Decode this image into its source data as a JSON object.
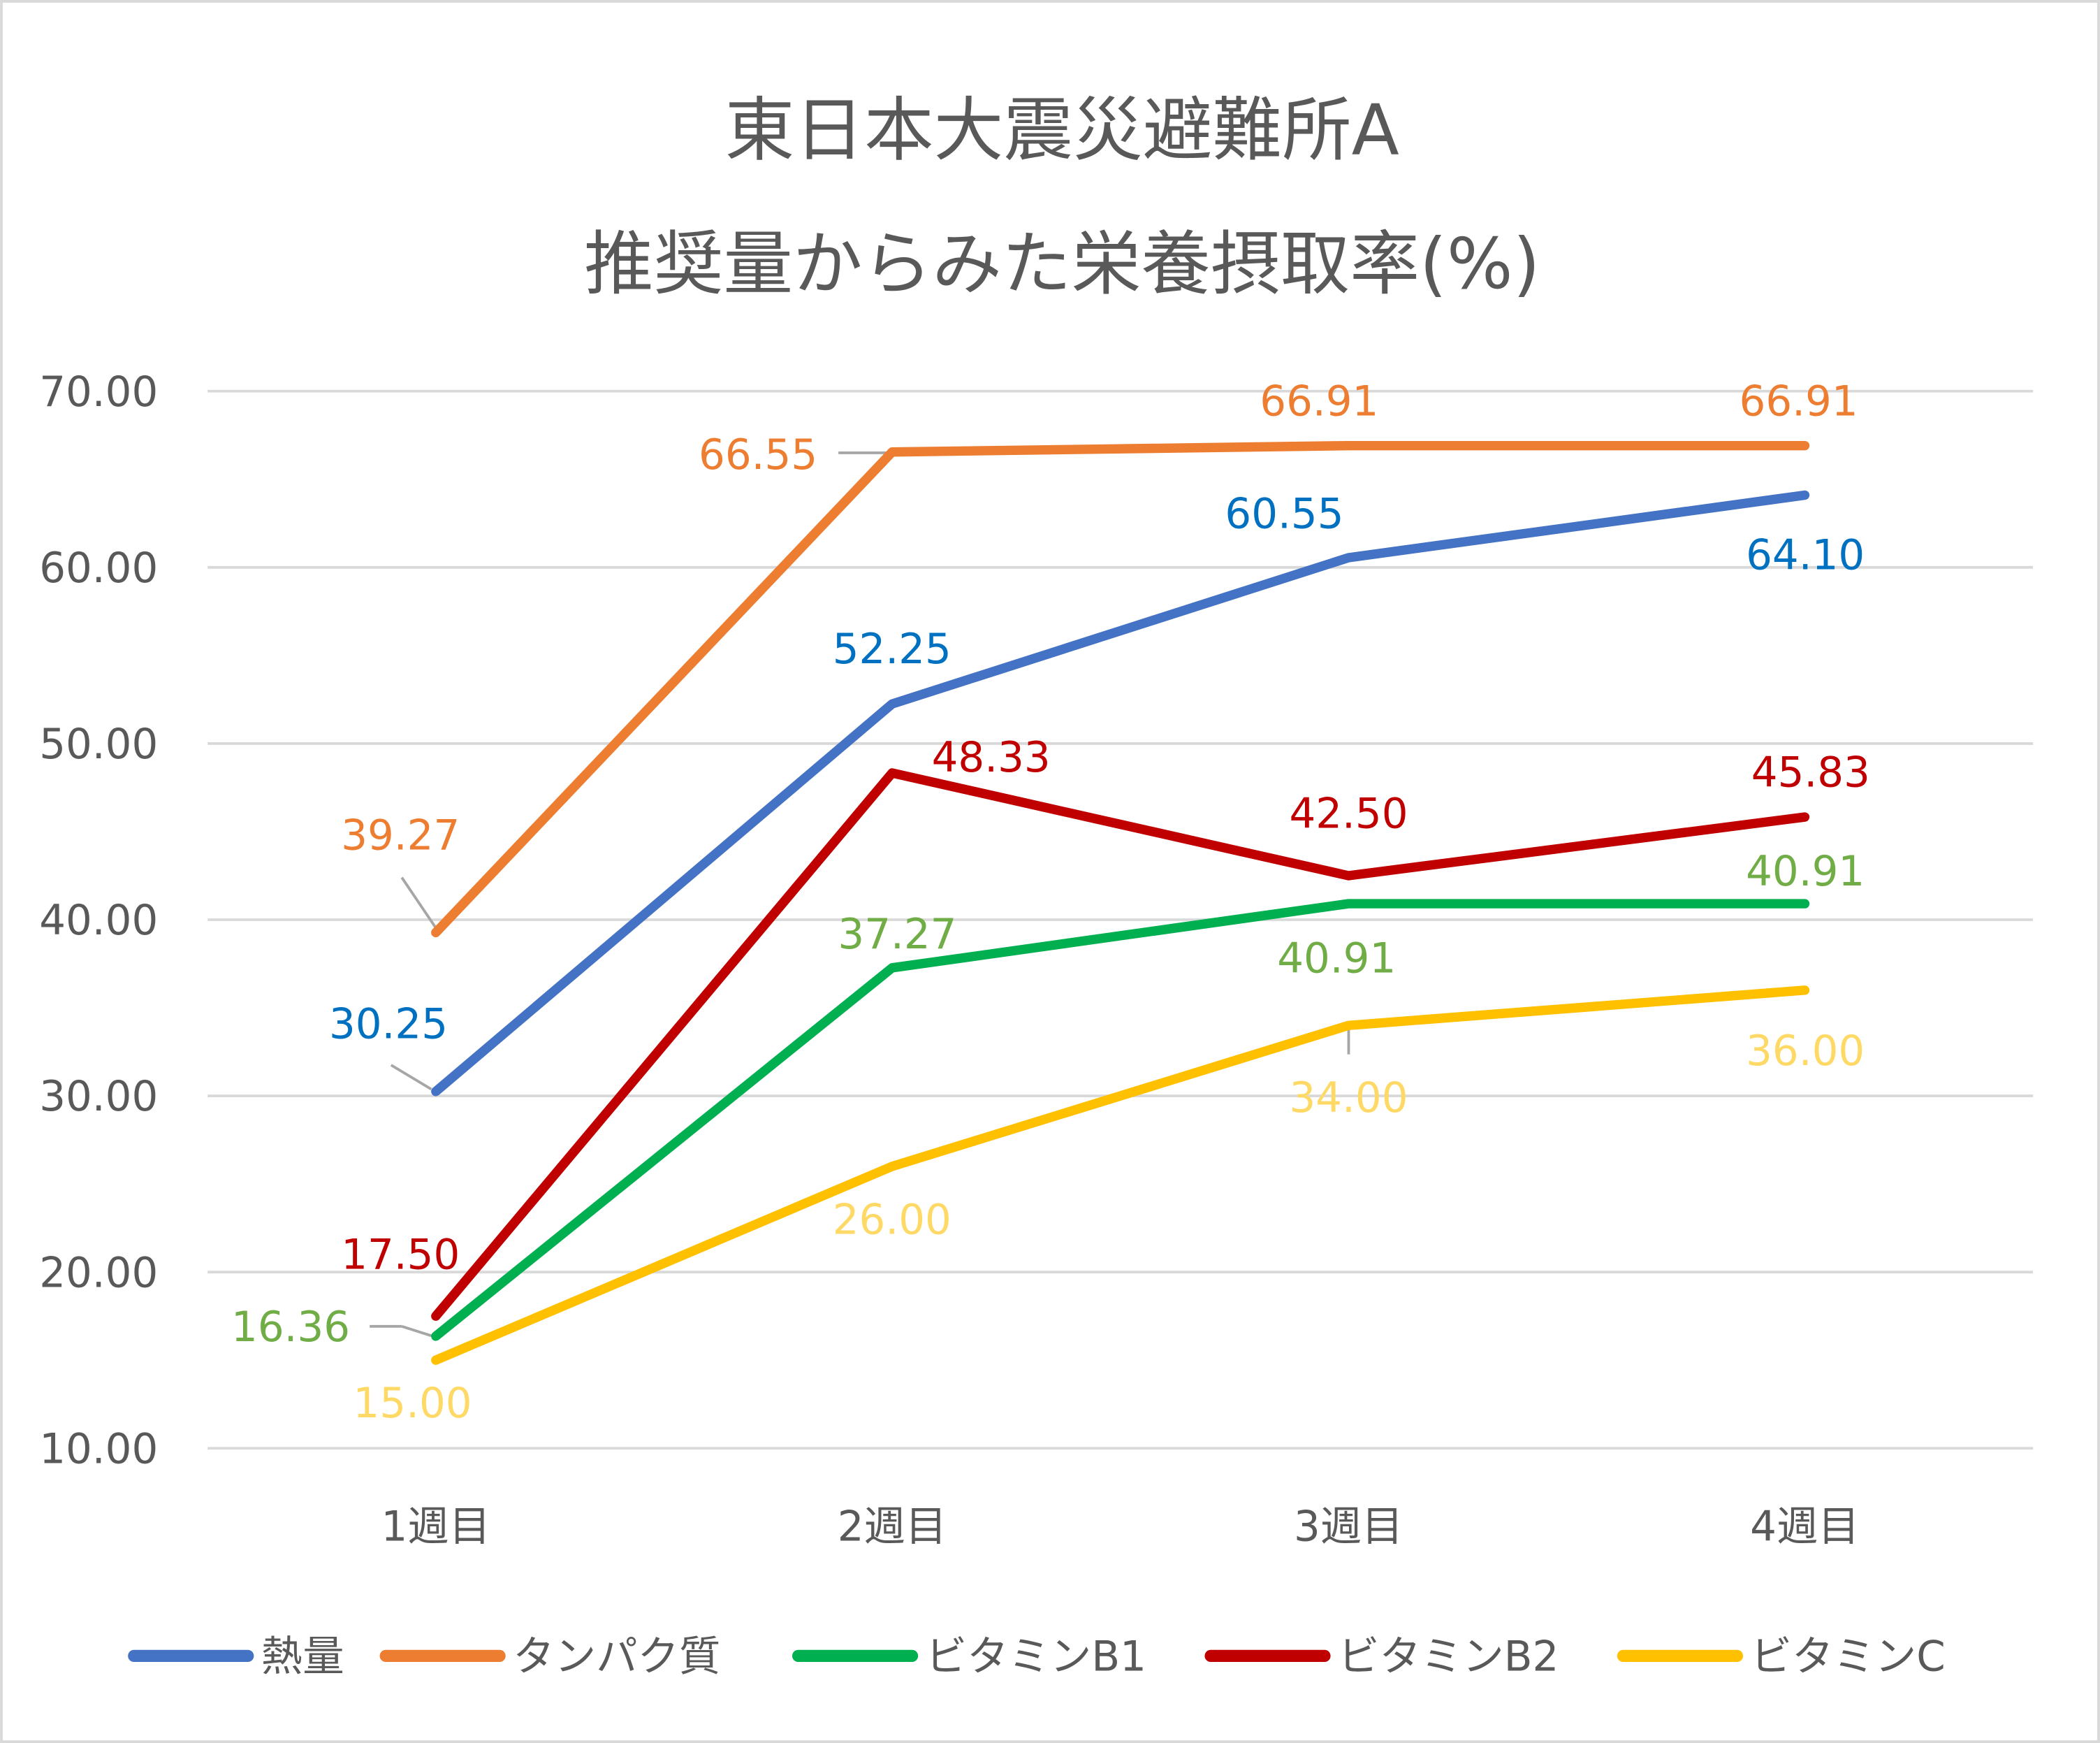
{
  "chart_data": {
    "type": "line",
    "title": [
      "東日本大震災避難所A",
      "推奨量からみた栄養摂取率(%)"
    ],
    "xlabel": "",
    "ylabel": "",
    "categories": [
      "1週目",
      "2週目",
      "3週目",
      "4週目"
    ],
    "ylim": [
      10,
      70
    ],
    "yticks": [
      "10.00",
      "20.00",
      "30.00",
      "40.00",
      "50.00",
      "60.00",
      "70.00"
    ],
    "grid": true,
    "legend_position": "bottom",
    "series": [
      {
        "name": "熱量",
        "values": [
          30.25,
          52.25,
          60.55,
          64.1
        ],
        "labels": [
          "30.25",
          "52.25",
          "60.55",
          "64.10"
        ],
        "color": "#4472C4",
        "label_color": "#0070C0"
      },
      {
        "name": "タンパク質",
        "values": [
          39.27,
          66.55,
          66.91,
          66.91
        ],
        "labels": [
          "39.27",
          "66.55",
          "66.91",
          "66.91"
        ],
        "color": "#ED7D31",
        "label_color": "#ED7D31"
      },
      {
        "name": "ビタミンB1",
        "values": [
          16.36,
          37.27,
          40.91,
          40.91
        ],
        "labels": [
          "16.36",
          "37.27",
          "40.91",
          "40.91"
        ],
        "color": "#00B050",
        "label_color": "#70AD47"
      },
      {
        "name": "ビタミンB2",
        "values": [
          17.5,
          48.33,
          42.5,
          45.83
        ],
        "labels": [
          "17.50",
          "48.33",
          "42.50",
          "45.83"
        ],
        "color": "#C00000",
        "label_color": "#C00000"
      },
      {
        "name": "ビタミンC",
        "values": [
          15.0,
          26.0,
          34.0,
          36.0
        ],
        "labels": [
          "15.00",
          "26.00",
          "34.00",
          "36.00"
        ],
        "color": "#FFC000",
        "label_color": "#FFD966"
      }
    ]
  }
}
